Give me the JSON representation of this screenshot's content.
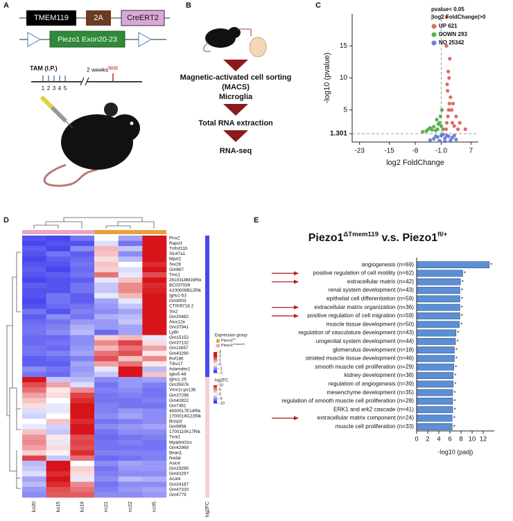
{
  "panel_labels": [
    "A",
    "B",
    "C",
    "D",
    "E"
  ],
  "panel_a": {
    "construct": [
      "TMEM119",
      "2A",
      "CreERT2"
    ],
    "flox": "Piezo1 Exon20-23",
    "tam": "TAM (I.P.)",
    "days": [
      "1",
      "2",
      "3",
      "4",
      "5"
    ],
    "interval": "2 weeks",
    "test": "test"
  },
  "panel_b": {
    "steps": [
      "Magnetic-activated cell sorting",
      "(MACS)",
      "Microglia",
      "Total RNA extraction",
      "RNA-seq"
    ]
  },
  "chart_data": [
    {
      "type": "scatter",
      "xlabel": "log2 FoldChange",
      "ylabel": "-log10 (pvalue)",
      "legend_title": [
        "pvalue< 0.05",
        "|log2 FoldChange|>0"
      ],
      "legend": "upper right",
      "xlim": [
        -25,
        9
      ],
      "ylim": [
        0,
        20
      ],
      "xticks": [
        -23,
        -15,
        -8,
        {
          "value": -1,
          "label": "-1.0"
        },
        7
      ],
      "yticks": [
        1.301,
        5,
        10,
        15
      ],
      "series": [
        {
          "name": "UP 621",
          "color": "#e06a66",
          "x": [
            0.3,
            0.5,
            0.8,
            1,
            1.2,
            1.5,
            2,
            2.5,
            3,
            3.5,
            4,
            0.6,
            0.9,
            1.3,
            0.4,
            0.7,
            1.8,
            2.2,
            0.5,
            1.1,
            5.5
          ],
          "values": [
            2,
            3,
            4,
            5,
            6,
            7,
            3,
            2.5,
            4,
            2,
            3,
            9,
            11,
            13,
            15,
            8,
            5,
            6,
            19.5,
            10,
            2
          ]
        },
        {
          "name": "DOWN 293",
          "color": "#55b24a",
          "x": [
            -0.5,
            -1,
            -1.5,
            -2,
            -2.5,
            -3,
            -3.5,
            -4,
            -4.5,
            -5,
            -6,
            -1.2,
            -0.8,
            -2.2,
            -1.8
          ],
          "values": [
            2,
            2.5,
            3,
            2,
            1.8,
            2.4,
            1.9,
            2.2,
            2,
            1.7,
            1.6,
            4,
            5,
            3.5,
            2.8
          ]
        },
        {
          "name": "NO 25342",
          "color": "#6b80d6",
          "x": [
            -3,
            -2,
            -1,
            -0.5,
            0,
            0.5,
            1,
            2,
            3,
            -4,
            -1.5,
            1.5,
            -2.5,
            2.5,
            0
          ],
          "values": [
            0.5,
            0.8,
            1,
            1.2,
            0.6,
            1,
            0.9,
            0.7,
            0.4,
            0.3,
            0.2,
            0.3,
            0.9,
            1,
            0.1
          ]
        }
      ]
    },
    {
      "type": "heatmap",
      "columns": [
        "ko20",
        "ko15",
        "ko19",
        "nc21",
        "nc22",
        "nc35"
      ],
      "column_groups": [
        1,
        1,
        1,
        0,
        0,
        0
      ],
      "rows": [
        "Prrx2",
        "Rapo3",
        "Tnfrsf11b",
        "Slc47a1",
        "Mpzl2",
        "Tex26",
        "Gm867",
        "Tmc1",
        "2610318M16Rik",
        "BC037039",
        "A230009B12Rik",
        "Ighv1-53",
        "Gm9003",
        "CT009718.2",
        "Six2",
        "Gm20482",
        "Alox12e",
        "Gm37941",
        "Ly6h",
        "Gm15152",
        "Gm37132",
        "Gm11657",
        "Gm43290",
        "Rnf186",
        "Trbv17",
        "Adamdec1",
        "Igkv5-48",
        "Ighv1-26",
        "Gm35876",
        "Vmn1r-ps136",
        "Gm37296",
        "Gm42822",
        "Gm7461",
        "4930517E14Rik",
        "1700016G22Rik",
        "Brinp3",
        "Gm9958",
        "1700110K17Rik",
        "Tnni1",
        "Myadml2os",
        "Gm42969",
        "Bean1",
        "Nodal",
        "Asic4",
        "Gm29290",
        "Gm43267",
        "Acot4",
        "Gm24187",
        "Gm47320",
        "Gm4779"
      ],
      "values": [
        [
          -1.5,
          -1.6,
          -1.2,
          0,
          -0.8,
          2
        ],
        [
          -1.6,
          -1.5,
          -1.5,
          -0.3,
          -1.2,
          2.2
        ],
        [
          -1.4,
          -1.6,
          -1,
          0.6,
          -0.5,
          2
        ],
        [
          -1.5,
          -1.2,
          -1.4,
          0.5,
          -1,
          2.1
        ],
        [
          -1.6,
          -1.4,
          -1.3,
          0.3,
          -0.6,
          2
        ],
        [
          -1.5,
          -1.5,
          -1.2,
          0.5,
          0,
          1.8
        ],
        [
          -1.4,
          -1.6,
          -1.3,
          0.4,
          -0.3,
          2
        ],
        [
          -1.5,
          -1.4,
          -1.2,
          1.2,
          -0.2,
          1.5
        ],
        [
          -1.6,
          -1.5,
          -1.4,
          -0.2,
          0.5,
          2
        ],
        [
          -1.4,
          -1.5,
          -1.2,
          -0.5,
          1,
          1.8
        ],
        [
          -1.5,
          -1.5,
          -1.2,
          -0.5,
          1,
          1.9
        ],
        [
          -1.5,
          -1.2,
          -1.4,
          -0.2,
          0.6,
          2
        ],
        [
          -1.6,
          -1.2,
          -1.4,
          -0.8,
          -0.2,
          2.2
        ],
        [
          -1.5,
          -1.3,
          -1.2,
          -0.9,
          -0.5,
          2.2
        ],
        [
          -1.2,
          -1.5,
          -1.1,
          -1,
          -0.8,
          2.2
        ],
        [
          -1.4,
          -1,
          -1.2,
          -0.7,
          -0.6,
          2.2
        ],
        [
          -1.3,
          -1.2,
          -0.9,
          -0.9,
          -0.5,
          2.2
        ],
        [
          -1.2,
          -1.1,
          -0.7,
          -0.9,
          -0.8,
          2.2
        ],
        [
          -1.2,
          -1,
          -0.6,
          -1.3,
          -0.8,
          2.2
        ],
        [
          -1.3,
          -1.3,
          -1,
          0.4,
          0.6,
          -0.2
        ],
        [
          -1.3,
          -1.2,
          -1,
          1,
          1.6,
          0.3
        ],
        [
          -1.2,
          -1.3,
          -0.9,
          0.6,
          1.2,
          0.8
        ],
        [
          -1.2,
          -1.1,
          -0.8,
          1.2,
          1.5,
          0.2
        ],
        [
          -1.4,
          -1.3,
          -1.1,
          1.5,
          0.5,
          1
        ],
        [
          -1.4,
          -1.4,
          -0.8,
          0.8,
          1.2,
          0.2
        ],
        [
          -1,
          -1.2,
          -0.9,
          -0.2,
          2.2,
          -0.6
        ],
        [
          -1.2,
          -1.3,
          -0.8,
          -0.5,
          2,
          0.5
        ],
        [
          2.2,
          -0.5,
          -0.6,
          -1,
          -0.9,
          -0.8
        ],
        [
          1.5,
          0.8,
          -0.3,
          -1.2,
          -0.9,
          -1.1
        ],
        [
          1.2,
          0.2,
          1,
          -1.1,
          -1,
          -1.2
        ],
        [
          0.8,
          0.3,
          1.6,
          -1.2,
          -1.1,
          -1.2
        ],
        [
          0.5,
          0,
          1.8,
          -1.2,
          -1.2,
          -1.1
        ],
        [
          0.3,
          -0.2,
          2,
          -1.1,
          -1.2,
          -1.2
        ],
        [
          -0.3,
          -0.2,
          2.2,
          -1.1,
          -0.9,
          -1
        ],
        [
          -0.4,
          0,
          2.2,
          -1,
          -0.8,
          -1
        ],
        [
          0,
          0.5,
          1.8,
          -1.2,
          -1.1,
          -1
        ],
        [
          -0.2,
          -0.4,
          2,
          -1,
          -0.9,
          -0.8
        ],
        [
          0.5,
          -0.5,
          2,
          -1.2,
          -1,
          -1
        ],
        [
          0.9,
          0.2,
          1.5,
          -1.3,
          -1.2,
          -1.1
        ],
        [
          1,
          -0.2,
          1.6,
          -1.2,
          -1.1,
          -1.2
        ],
        [
          0.8,
          0.3,
          1.5,
          -1.2,
          -1.2,
          -1.2
        ],
        [
          0.4,
          0.1,
          1.8,
          -1.1,
          -1.1,
          -1.1
        ],
        [
          1.6,
          -0.5,
          1.2,
          -1.3,
          -1.2,
          -1.1
        ],
        [
          -0.6,
          2.2,
          0,
          -1,
          -0.8,
          -0.9
        ],
        [
          -0.5,
          2.1,
          0.4,
          -1.2,
          -0.9,
          -0.9
        ],
        [
          -0.3,
          1.8,
          0.3,
          -1.1,
          -1,
          -1
        ],
        [
          -0.8,
          2,
          -0.2,
          -1,
          -0.6,
          -0.7
        ],
        [
          -0.6,
          1.8,
          1,
          -1.2,
          -1,
          -1
        ],
        [
          -0.9,
          1.5,
          1.2,
          -1.1,
          -0.9,
          -0.8
        ],
        [
          -1,
          1.4,
          1.4,
          -1,
          -1,
          -0.9
        ]
      ],
      "log2fc": [
        -8,
        -8,
        -8,
        -8,
        -8,
        -8,
        -8,
        -8,
        -8,
        -8,
        -8,
        -8,
        -8,
        -8,
        -8,
        -8,
        -8,
        -8,
        -8,
        -8,
        -8,
        -8,
        -8,
        -8,
        -8,
        -8,
        -8,
        2,
        2,
        2,
        2,
        2,
        2,
        2,
        2,
        2,
        2,
        2,
        2,
        2,
        2,
        2,
        2,
        2,
        2,
        2,
        2,
        2,
        2,
        2
      ],
      "legend_title": "Expression group",
      "groups": [
        {
          "name": [
            "Piezo1",
            "fl/+"
          ],
          "color": "#e8a03c"
        },
        {
          "name": [
            "Piezo1",
            "ΔTmem119"
          ],
          "color": "#e7a6c8"
        }
      ],
      "color_ticks": [
        3,
        2,
        1,
        0,
        -1,
        -2
      ],
      "log2fc_title": "log2FC",
      "log2fc_ticks": [
        10,
        5,
        0,
        -5,
        -10
      ]
    },
    {
      "type": "barh",
      "title": [
        "Piezo1",
        "ΔTmem119",
        " v.s. Piezo1",
        "fl/+"
      ],
      "categories": [
        "angiogenesis (n=69)",
        "positive regulation of cell motility (n=62)",
        "extracellular matrix (n=42)",
        "renal system development (n=43)",
        "epithelial cell differentiation (n=59)",
        "extracellular matrix organization (n=36)",
        "positive regulation of cell migration (n=59)",
        "muscle tissue development (n=50)",
        "regulation of vasculature development (n=43)",
        "urogenital system development (n=44)",
        "glomerulus development (n=18)",
        "striated muscle tissue development (n=46)",
        "smooth muscle cell proliferation (n=29)",
        "kidney development (n=38)",
        "regulation of angiogenesis (n=39)",
        "mesenchyme development (n=35)",
        "regulation of smooth muscle cell proliferation (n=28)",
        "ERK1 and erk2 cascade (n=41)",
        "extracellular matrix component (n=24)",
        "muscle cell proliferation (n=33)"
      ],
      "values": [
        13.1,
        8.3,
        7.9,
        7.8,
        7.8,
        7.8,
        7.8,
        7.7,
        7.1,
        7.0,
        6.8,
        6.8,
        6.7,
        6.6,
        6.6,
        6.5,
        6.5,
        6.5,
        6.4,
        6.4
      ],
      "color": "#5b8fd6",
      "marker": "*",
      "highlighted": [
        1,
        2,
        5,
        6,
        18
      ],
      "xlim": [
        0,
        14
      ],
      "xticks": [
        0,
        2,
        4,
        6,
        8,
        10,
        12
      ],
      "xlabel": "-log10 (padj)"
    }
  ]
}
